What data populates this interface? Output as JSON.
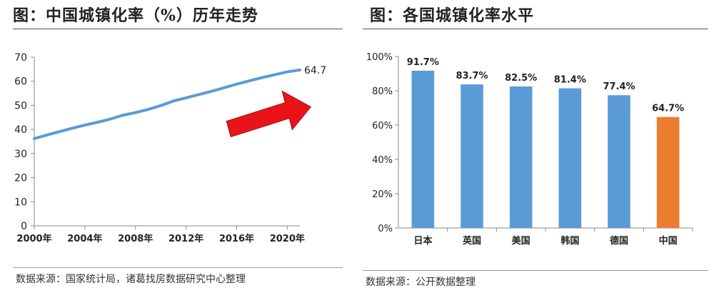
{
  "left": {
    "title": "图：中国城镇化率（%）历年走势",
    "source": "数据来源：国家统计局，诸葛找房数据研究中心整理"
  },
  "right": {
    "title": "图：各国城镇化率水平",
    "source": "数据来源：公开数据整理"
  },
  "colors": {
    "line": "#5b9bd5",
    "bar": "#5b9bd5",
    "highlight_bar": "#ed7d31",
    "arrow": "#e8141a"
  },
  "chart_data": [
    {
      "type": "line",
      "title": "",
      "xlabel": "",
      "ylabel": "",
      "ylim": [
        0,
        70
      ],
      "xlim": [
        2000,
        2021
      ],
      "x_ticks": [
        "2000年",
        "2004年",
        "2008年",
        "2012年",
        "2016年",
        "2020年"
      ],
      "y_ticks": [
        "0",
        "10",
        "20",
        "30",
        "40",
        "50",
        "60",
        "70"
      ],
      "grid": false,
      "series": [
        {
          "x": [
            2000,
            2001,
            2002,
            2003,
            2004,
            2005,
            2006,
            2007,
            2008,
            2009,
            2010,
            2011,
            2012,
            2013,
            2014,
            2015,
            2016,
            2017,
            2018,
            2019,
            2020,
            2021
          ],
          "values": [
            36.2,
            37.7,
            39.1,
            40.5,
            41.8,
            43.0,
            44.3,
            45.9,
            47.0,
            48.3,
            49.9,
            51.8,
            53.1,
            54.5,
            55.8,
            57.3,
            58.8,
            60.2,
            61.5,
            62.7,
            63.9,
            64.7
          ]
        }
      ],
      "annotations": [
        {
          "text": "64.7",
          "x": 2021,
          "y": 64.7
        }
      ],
      "arrow": "trend-up"
    },
    {
      "type": "bar",
      "title": "",
      "xlabel": "",
      "ylabel": "",
      "ylim": [
        0,
        100
      ],
      "y_ticks": [
        "0%",
        "20%",
        "40%",
        "60%",
        "80%",
        "100%"
      ],
      "grid": false,
      "categories": [
        "日本",
        "英国",
        "美国",
        "韩国",
        "德国",
        "中国"
      ],
      "values": [
        91.7,
        83.7,
        82.5,
        81.4,
        77.4,
        64.7
      ],
      "data_labels": [
        "91.7%",
        "83.7%",
        "82.5%",
        "81.4%",
        "77.4%",
        "64.7%"
      ],
      "highlight_category": "中国"
    }
  ]
}
